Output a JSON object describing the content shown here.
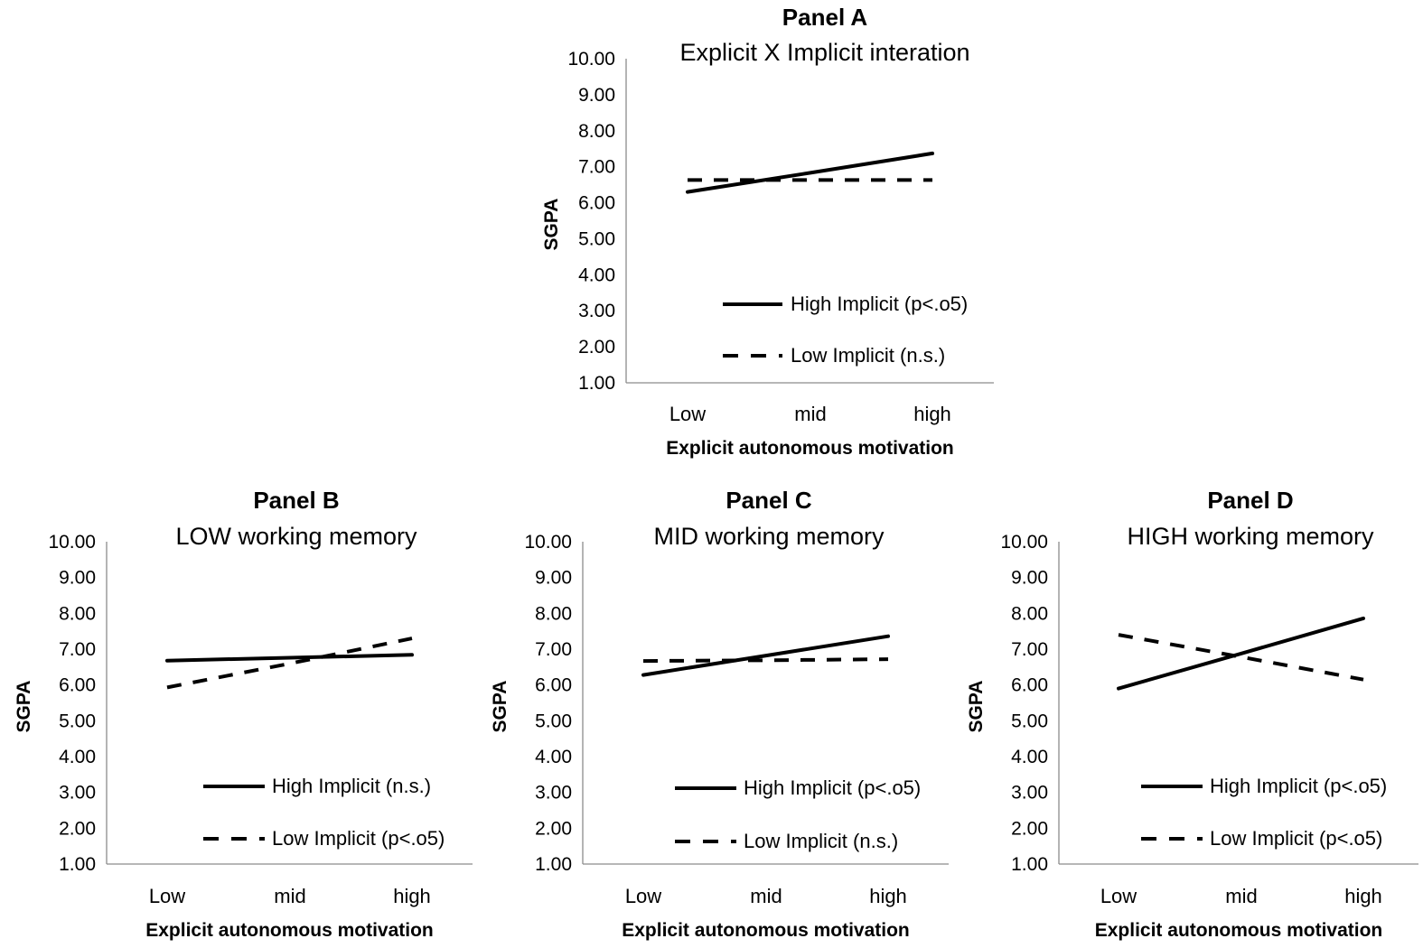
{
  "chart_data": [
    {
      "type": "line",
      "title": "Panel A",
      "subtitle": "Explicit X Implicit interation",
      "xlabel": "Explicit autonomous motivation",
      "ylabel": "SGPA",
      "categories": [
        "Low",
        "mid",
        "high"
      ],
      "yticks": [
        "1.00",
        "2.00",
        "3.00",
        "4.00",
        "5.00",
        "6.00",
        "7.00",
        "8.00",
        "9.00",
        "10.00"
      ],
      "ylim": [
        1,
        10
      ],
      "legend_position": "bottom-right",
      "series": [
        {
          "name": "High Implicit (p<.o5)",
          "style": "solid",
          "values": [
            6.3,
            6.83,
            7.37
          ]
        },
        {
          "name": "Low Implicit (n.s.)",
          "style": "dashed",
          "values": [
            6.63,
            6.63,
            6.63
          ]
        }
      ]
    },
    {
      "type": "line",
      "title": "Panel B",
      "subtitle": "LOW working memory",
      "xlabel": "Explicit autonomous motivation",
      "ylabel": "SGPA",
      "categories": [
        "Low",
        "mid",
        "high"
      ],
      "yticks": [
        "1.00",
        "2.00",
        "3.00",
        "4.00",
        "5.00",
        "6.00",
        "7.00",
        "8.00",
        "9.00",
        "10.00"
      ],
      "ylim": [
        1,
        10
      ],
      "legend_position": "bottom-right",
      "series": [
        {
          "name": "High Implicit (n.s.)",
          "style": "solid",
          "values": [
            6.68,
            6.76,
            6.84
          ]
        },
        {
          "name": "Low Implicit (p<.o5)",
          "style": "dashed",
          "values": [
            5.93,
            6.6,
            7.3
          ]
        }
      ]
    },
    {
      "type": "line",
      "title": "Panel C",
      "subtitle": "MID working memory",
      "xlabel": "Explicit autonomous motivation",
      "ylabel": "SGPA",
      "categories": [
        "Low",
        "mid",
        "high"
      ],
      "yticks": [
        "1.00",
        "2.00",
        "3.00",
        "4.00",
        "5.00",
        "6.00",
        "7.00",
        "8.00",
        "9.00",
        "10.00"
      ],
      "ylim": [
        1,
        10
      ],
      "legend_position": "bottom-right",
      "series": [
        {
          "name": "High Implicit (p<.o5)",
          "style": "solid",
          "values": [
            6.28,
            6.82,
            7.36
          ]
        },
        {
          "name": "Low Implicit (n.s.)",
          "style": "dashed",
          "values": [
            6.67,
            6.69,
            6.72
          ]
        }
      ]
    },
    {
      "type": "line",
      "title": "Panel D",
      "subtitle": "HIGH working memory",
      "xlabel": "Explicit autonomous motivation",
      "ylabel": "SGPA",
      "categories": [
        "Low",
        "mid",
        "high"
      ],
      "yticks": [
        "1.00",
        "2.00",
        "3.00",
        "4.00",
        "5.00",
        "6.00",
        "7.00",
        "8.00",
        "9.00",
        "10.00"
      ],
      "ylim": [
        1,
        10
      ],
      "legend_position": "bottom-right",
      "series": [
        {
          "name": "High Implicit (p<.o5)",
          "style": "solid",
          "values": [
            5.9,
            6.88,
            7.86
          ]
        },
        {
          "name": "Low Implicit (p<.o5)",
          "style": "dashed",
          "values": [
            7.4,
            6.78,
            6.15
          ]
        }
      ]
    }
  ]
}
